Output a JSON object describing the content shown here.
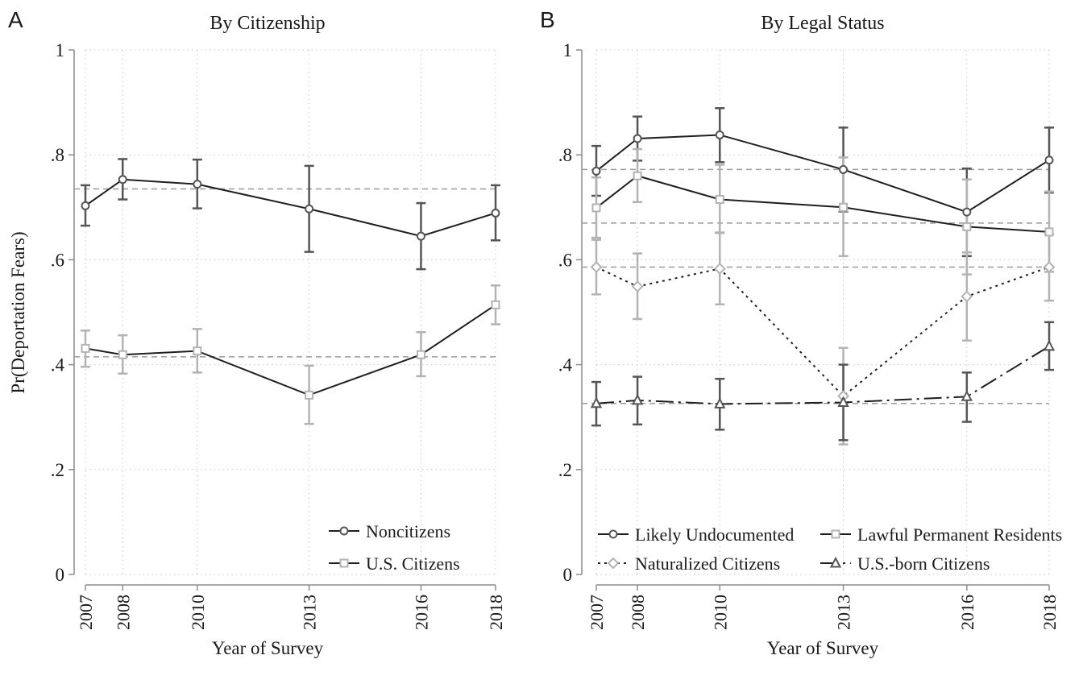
{
  "figure": {
    "ylabel": "Pr(Deportation Fears)",
    "y_ticks": [
      {
        "v": 0,
        "label": "0"
      },
      {
        "v": 0.2,
        "label": ".2"
      },
      {
        "v": 0.4,
        "label": ".4"
      },
      {
        "v": 0.6,
        "label": ".6"
      },
      {
        "v": 0.8,
        "label": ".8"
      },
      {
        "v": 1,
        "label": "1"
      }
    ],
    "x_ticks": [
      {
        "v": 2007,
        "label": "2007"
      },
      {
        "v": 2008,
        "label": "2008"
      },
      {
        "v": 2010,
        "label": "2010"
      },
      {
        "v": 2013,
        "label": "2013"
      },
      {
        "v": 2016,
        "label": "2016"
      },
      {
        "v": 2018,
        "label": "2018"
      }
    ],
    "colors": {
      "dark": "#555555",
      "light": "#b3b3b3",
      "grid": "#c8c8c8",
      "axis": "#8c8c8c",
      "text": "#1a1a1a"
    }
  },
  "chart_data": [
    {
      "type": "line",
      "panel_letter": "A",
      "title": "By Citizenship",
      "xlabel": "Year of Survey",
      "ylabel": "Pr(Deportation Fears)",
      "xlim": [
        2007,
        2018
      ],
      "ylim": [
        0,
        1
      ],
      "grid": true,
      "legend_position": "bottom-right",
      "series": [
        {
          "name": "Noncitizens",
          "marker": "circle",
          "color": "#555555",
          "dash": "solid",
          "baseline": 0.735,
          "x": [
            2007,
            2008,
            2010,
            2013,
            2016,
            2018
          ],
          "y": [
            0.703,
            0.753,
            0.744,
            0.697,
            0.645,
            0.689
          ],
          "ci_low": [
            0.665,
            0.715,
            0.698,
            0.615,
            0.582,
            0.637
          ],
          "ci_high": [
            0.742,
            0.792,
            0.791,
            0.779,
            0.708,
            0.742
          ]
        },
        {
          "name": "U.S. Citizens",
          "marker": "square",
          "color": "#b3b3b3",
          "dash": "solid",
          "baseline": 0.415,
          "x": [
            2007,
            2008,
            2010,
            2013,
            2016,
            2018
          ],
          "y": [
            0.431,
            0.419,
            0.426,
            0.342,
            0.419,
            0.514
          ],
          "ci_low": [
            0.396,
            0.383,
            0.385,
            0.287,
            0.378,
            0.477
          ],
          "ci_high": [
            0.465,
            0.456,
            0.468,
            0.398,
            0.462,
            0.551
          ]
        }
      ]
    },
    {
      "type": "line",
      "panel_letter": "B",
      "title": "By Legal Status",
      "xlabel": "Year of Survey",
      "ylabel": "",
      "xlim": [
        2007,
        2018
      ],
      "ylim": [
        0,
        1
      ],
      "grid": true,
      "legend_position": "bottom",
      "series": [
        {
          "name": "Likely Undocumented",
          "marker": "circle",
          "color": "#555555",
          "dash": "solid",
          "baseline": 0.772,
          "x": [
            2007,
            2008,
            2010,
            2013,
            2016,
            2018
          ],
          "y": [
            0.769,
            0.831,
            0.838,
            0.772,
            0.691,
            0.79
          ],
          "ci_low": [
            0.722,
            0.789,
            0.786,
            0.692,
            0.607,
            0.728
          ],
          "ci_high": [
            0.817,
            0.873,
            0.889,
            0.852,
            0.774,
            0.852
          ]
        },
        {
          "name": "Lawful Permanent Residents",
          "marker": "square",
          "color": "#b3b3b3",
          "dash": "solid",
          "baseline": 0.67,
          "x": [
            2007,
            2008,
            2010,
            2013,
            2016,
            2018
          ],
          "y": [
            0.699,
            0.76,
            0.715,
            0.7,
            0.663,
            0.653
          ],
          "ci_low": [
            0.642,
            0.71,
            0.651,
            0.607,
            0.572,
            0.577
          ],
          "ci_high": [
            0.757,
            0.811,
            0.781,
            0.795,
            0.753,
            0.73
          ]
        },
        {
          "name": "Naturalized Citizens",
          "marker": "diamond",
          "color": "#b3b3b3",
          "dash": "dot",
          "baseline": 0.586,
          "x": [
            2007,
            2008,
            2010,
            2013,
            2016,
            2018
          ],
          "y": [
            0.586,
            0.549,
            0.583,
            0.34,
            0.53,
            0.586
          ],
          "ci_low": [
            0.534,
            0.487,
            0.515,
            0.248,
            0.446,
            0.522
          ],
          "ci_high": [
            0.638,
            0.612,
            0.652,
            0.432,
            0.614,
            0.649
          ]
        },
        {
          "name": "U.S.-born Citizens",
          "marker": "triangle",
          "color": "#555555",
          "dash": "dashdot",
          "baseline": 0.326,
          "x": [
            2007,
            2008,
            2010,
            2013,
            2016,
            2018
          ],
          "y": [
            0.326,
            0.332,
            0.325,
            0.328,
            0.339,
            0.435
          ],
          "ci_low": [
            0.284,
            0.286,
            0.276,
            0.256,
            0.291,
            0.39
          ],
          "ci_high": [
            0.367,
            0.377,
            0.373,
            0.4,
            0.385,
            0.481
          ]
        }
      ]
    }
  ]
}
